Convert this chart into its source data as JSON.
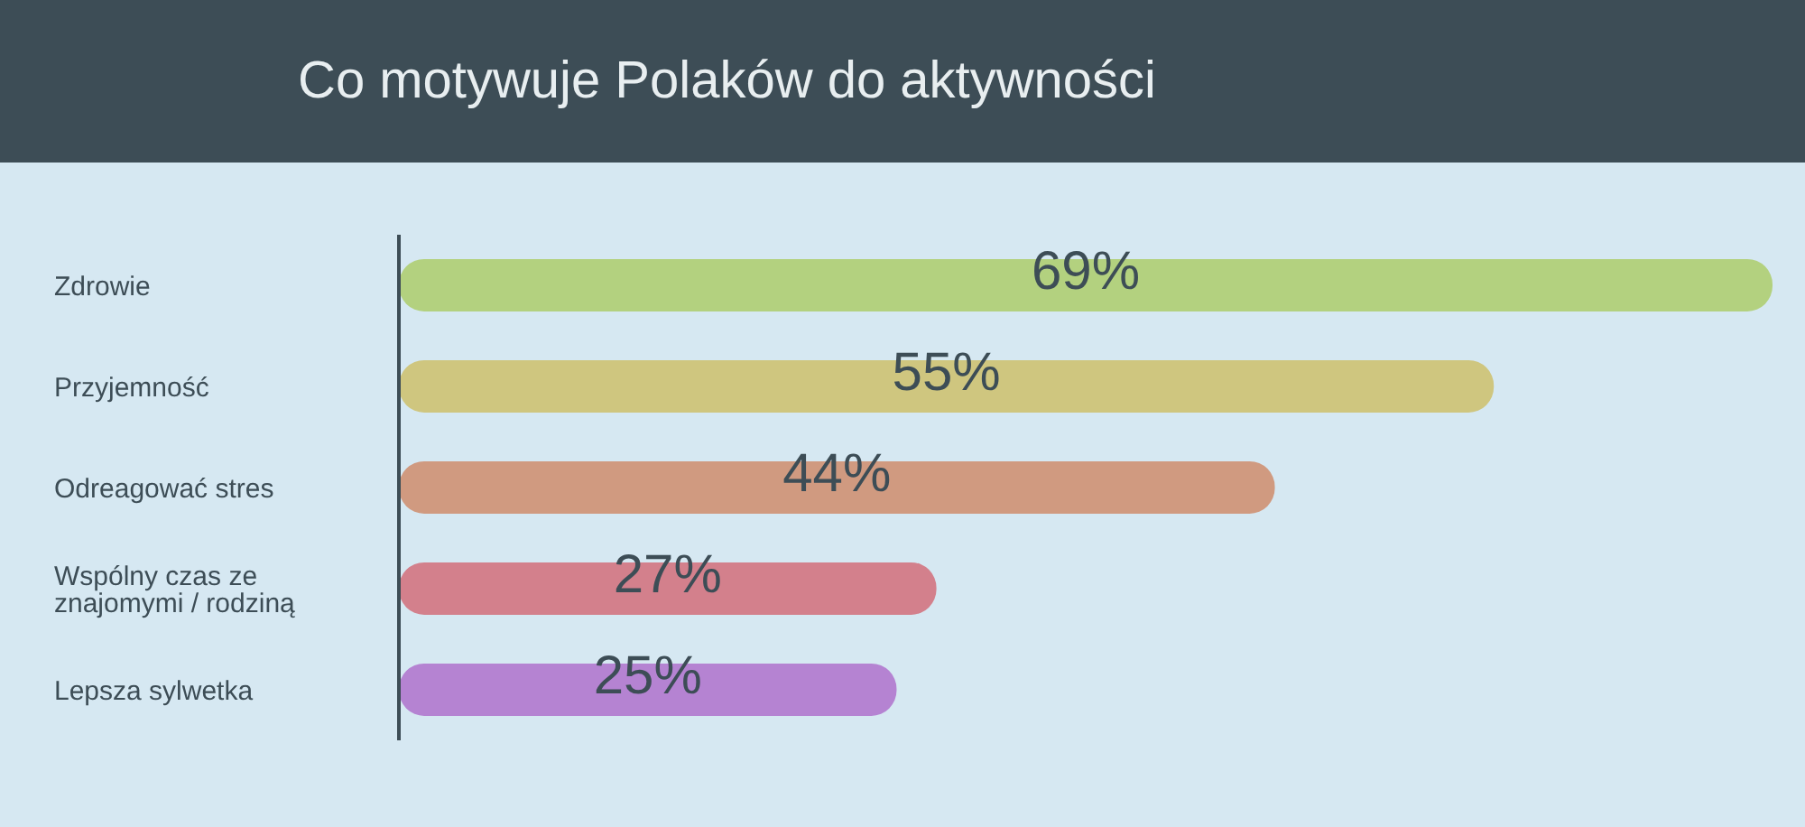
{
  "chart_data": {
    "type": "bar",
    "orientation": "horizontal",
    "title": "Co motywuje Polaków do aktywności",
    "categories": [
      "Zdrowie",
      "Przyjemność",
      "Odreagować stres",
      "Wspólny czas ze znajomymi / rodziną",
      "Lepsza sylwetka"
    ],
    "values": [
      69,
      55,
      44,
      27,
      25
    ],
    "colors": [
      "#b3d17f",
      "#cfc67f",
      "#d09a80",
      "#d3808c",
      "#b583d2"
    ],
    "value_labels": [
      "69%",
      "55%",
      "44%",
      "27%",
      "25%"
    ],
    "tick_labels": "y"
  }
}
